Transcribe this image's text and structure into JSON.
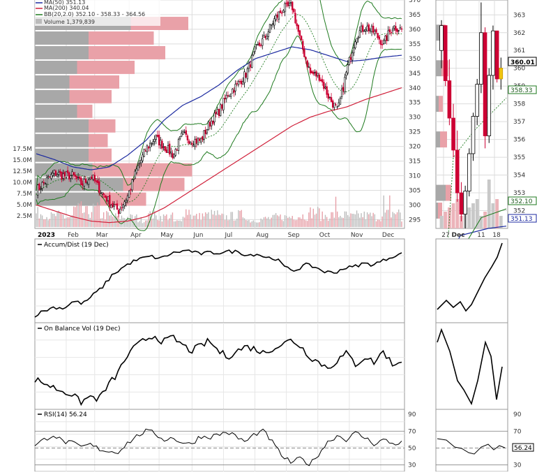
{
  "legend": {
    "ma50": "MA(50) 351.13",
    "ma200": "MA(200) 340.04",
    "bb": "BB(20,2.0) 352.10 - 358.33 - 364.56",
    "volume": "Volume 1,379,839"
  },
  "price_ticks": [
    "295",
    "300",
    "305",
    "310",
    "315",
    "320",
    "325",
    "330",
    "335",
    "340",
    "345",
    "350",
    "355",
    "360",
    "365",
    "370"
  ],
  "volume_ticks": [
    "2.5M",
    "5.0M",
    "7.5M",
    "10.0M",
    "12.5M",
    "15.0M",
    "17.5M"
  ],
  "month_labels": [
    "2023",
    "Feb",
    "Mar",
    "Apr",
    "May",
    "Jun",
    "Jul",
    "Aug",
    "Sep",
    "Oct",
    "Nov",
    "Dec"
  ],
  "zoom_price_ticks": [
    "352",
    "353",
    "354",
    "355",
    "356",
    "357",
    "358",
    "359",
    "360",
    "361",
    "362",
    "363"
  ],
  "zoom_date_labels": [
    "27",
    "Dec",
    "11",
    "18"
  ],
  "price_badges": {
    "last": "360.01",
    "bb_mid": "358.33",
    "bb_low": "352.10",
    "ma50": "351.13"
  },
  "panels": {
    "ad": "Accum/Dist (19 Dec)",
    "obv": "On Balance Vol (19 Dec)",
    "rsi": "RSI(14) 56.24"
  },
  "rsi_ticks": [
    "90",
    "70",
    "50",
    "30"
  ],
  "rsi_value": "56.24",
  "colors": {
    "up": "#000000",
    "down": "#cc0033",
    "ma50": "#1c2aa0",
    "ma200": "#d0203a",
    "bb": "#1e7a1e",
    "bbmid": "#1e7a1e",
    "vp_up": "#a8a8a8",
    "vp_down": "#e9a1a8",
    "grid": "#dcdcdc"
  },
  "chart_data": [
    {
      "type": "line",
      "x_range": [
        "2023-01-03",
        "2023-12-19"
      ],
      "ylim": [
        292,
        370
      ],
      "series": [
        {
          "name": "MA(50) 351.13",
          "values": [
            317.5,
            315.5,
            313,
            312,
            313,
            317,
            322,
            329,
            334,
            337,
            341,
            346,
            350,
            352,
            354,
            353,
            351,
            349,
            349.5,
            350.5,
            351.13
          ]
        },
        {
          "name": "MA(200) 340.04",
          "values": [
            300,
            298,
            296,
            294.5,
            294,
            294.5,
            296,
            299,
            303,
            307,
            311,
            315,
            319,
            323,
            327,
            330,
            332,
            333.5,
            336,
            338,
            340.04
          ]
        },
        {
          "name": "BB(20,2.0) 352.10 - 358.33 - 364.56",
          "values": [
            352.1,
            358.33,
            364.56
          ]
        }
      ],
      "close_path": [
        305,
        308,
        311,
        310,
        310,
        307,
        310,
        305,
        301,
        298,
        303,
        312,
        319,
        323,
        320,
        317,
        324,
        322,
        322,
        328,
        332,
        338,
        341,
        345,
        353,
        357,
        363,
        367,
        368,
        355,
        345,
        344,
        337,
        332,
        346,
        358,
        361,
        359,
        355,
        361,
        360.01
      ],
      "volume": {
        "ylim": [
          0,
          17.5
        ],
        "values": [
          3.1,
          2.4,
          2.6,
          2.2,
          4.0,
          3.3,
          3.9,
          2.6,
          2.3,
          2.2,
          2.1,
          1.6,
          2.6,
          2.2,
          2.3,
          1.2,
          3.6,
          2.3,
          2.6,
          2.8,
          2.2,
          2.4,
          2.7,
          1.5,
          1.7,
          1.9,
          2.2,
          2.2,
          2.5,
          2.5,
          3.3,
          2.4,
          2.7,
          2.6,
          2.3,
          2.6,
          2.5,
          2.2,
          2.9,
          3.2,
          1.38
        ]
      },
      "volume_by_price": [
        {
          "price": 362,
          "up": 25,
          "down": 15
        },
        {
          "price": 357,
          "up": 14,
          "down": 17
        },
        {
          "price": 352,
          "up": 14,
          "down": 20
        },
        {
          "price": 347,
          "up": 11,
          "down": 15
        },
        {
          "price": 342,
          "up": 9,
          "down": 13
        },
        {
          "price": 337,
          "up": 9,
          "down": 11
        },
        {
          "price": 332,
          "up": 11,
          "down": 4
        },
        {
          "price": 327,
          "up": 14,
          "down": 7
        },
        {
          "price": 322,
          "up": 14,
          "down": 5
        },
        {
          "price": 317,
          "up": 14,
          "down": 6
        },
        {
          "price": 312,
          "up": 15,
          "down": 26
        },
        {
          "price": 307,
          "up": 23,
          "down": 16
        },
        {
          "price": 302,
          "up": 17,
          "down": 12
        }
      ]
    },
    {
      "type": "line",
      "title": "Accum/Dist (19 Dec)",
      "values": [
        20,
        24,
        27,
        26,
        32,
        30,
        37,
        44,
        54,
        60,
        65,
        68,
        70,
        68,
        72,
        74,
        75,
        72,
        73,
        73,
        74,
        74,
        71,
        72,
        69,
        68,
        60,
        58,
        63,
        61,
        57,
        56,
        60,
        61,
        64,
        63,
        66,
        70,
        72
      ]
    },
    {
      "type": "line",
      "title": "On Balance Vol (19 Dec)",
      "values": [
        35,
        32,
        28,
        25,
        22,
        15,
        20,
        18,
        30,
        40,
        55,
        64,
        70,
        74,
        68,
        72,
        66,
        60,
        64,
        69,
        60,
        55,
        60,
        64,
        62,
        58,
        63,
        66,
        70,
        64,
        55,
        50,
        45,
        52,
        58,
        48,
        55,
        50,
        60,
        48,
        52
      ]
    },
    {
      "type": "line",
      "title": "RSI(14) 56.24",
      "ylim": [
        22,
        96
      ],
      "values": [
        52,
        60,
        66,
        58,
        56,
        51,
        54,
        49,
        46,
        45,
        55,
        63,
        70,
        68,
        60,
        62,
        57,
        54,
        64,
        63,
        66,
        69,
        63,
        57,
        67,
        70,
        55,
        40,
        32,
        38,
        30,
        44,
        58,
        65,
        60,
        68,
        62,
        55,
        60,
        55,
        56.24
      ]
    }
  ]
}
